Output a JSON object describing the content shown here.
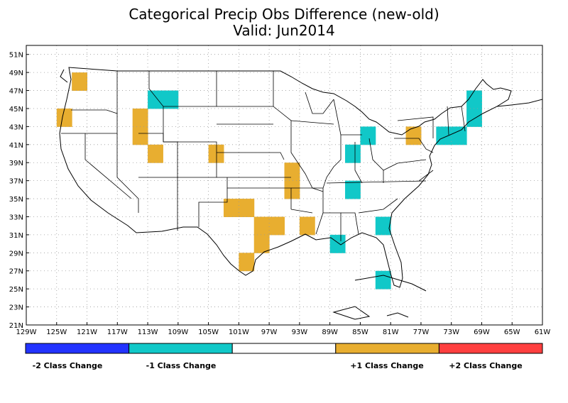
{
  "title": "Categorical Precip Obs Difference (new-old)",
  "subtitle": "Valid: Jun2014",
  "map": {
    "lon_range": [
      -129,
      -61
    ],
    "lat_range": [
      21,
      52
    ],
    "lon_ticks": [
      "129W",
      "125W",
      "121W",
      "117W",
      "113W",
      "109W",
      "105W",
      "101W",
      "97W",
      "93W",
      "89W",
      "85W",
      "81W",
      "77W",
      "73W",
      "69W",
      "65W",
      "61W"
    ],
    "lat_ticks": [
      "51N",
      "49N",
      "47N",
      "45N",
      "43N",
      "41N",
      "39N",
      "37N",
      "35N",
      "33N",
      "31N",
      "29N",
      "27N",
      "25N",
      "23N",
      "21N"
    ],
    "grid": true
  },
  "legend": {
    "items": [
      {
        "label": "-2 Class Change",
        "color": "#2233ff"
      },
      {
        "label": "-1 Class Change",
        "color": "#11c8c8"
      },
      {
        "label": "",
        "color": "#ffffff"
      },
      {
        "label": "+1 Class Change",
        "color": "#e8ae30"
      },
      {
        "label": "+2 Class Change",
        "color": "#ff3f3f"
      }
    ]
  },
  "cells": [
    {
      "lon": -123,
      "lat": 47,
      "cls": 1
    },
    {
      "lon": -125,
      "lat": 43,
      "cls": 1
    },
    {
      "lon": -115,
      "lat": 43,
      "cls": 1
    },
    {
      "lon": -115,
      "lat": 41,
      "cls": 1
    },
    {
      "lon": -113,
      "lat": 39,
      "cls": 1
    },
    {
      "lon": -105,
      "lat": 39,
      "cls": 1
    },
    {
      "lon": -113,
      "lat": 45,
      "cls": -1
    },
    {
      "lon": -111,
      "lat": 45,
      "cls": -1
    },
    {
      "lon": -95,
      "lat": 37,
      "cls": 1
    },
    {
      "lon": -95,
      "lat": 35,
      "cls": 1
    },
    {
      "lon": -101,
      "lat": 33,
      "cls": 1
    },
    {
      "lon": -103,
      "lat": 33,
      "cls": 1
    },
    {
      "lon": -97,
      "lat": 31,
      "cls": 1
    },
    {
      "lon": -99,
      "lat": 31,
      "cls": 1
    },
    {
      "lon": -99,
      "lat": 29,
      "cls": 1
    },
    {
      "lon": -101,
      "lat": 27,
      "cls": 1
    },
    {
      "lon": -93,
      "lat": 31,
      "cls": 1
    },
    {
      "lon": -89,
      "lat": 29,
      "cls": -1
    },
    {
      "lon": -87,
      "lat": 35,
      "cls": -1
    },
    {
      "lon": -87,
      "lat": 39,
      "cls": -1
    },
    {
      "lon": -85,
      "lat": 41,
      "cls": -1
    },
    {
      "lon": -83,
      "lat": 31,
      "cls": -1
    },
    {
      "lon": -83,
      "lat": 25,
      "cls": -1
    },
    {
      "lon": -79,
      "lat": 41,
      "cls": 1
    },
    {
      "lon": -75,
      "lat": 41,
      "cls": -1
    },
    {
      "lon": -73,
      "lat": 41,
      "cls": -1
    },
    {
      "lon": -71,
      "lat": 43,
      "cls": -1
    },
    {
      "lon": -71,
      "lat": 45,
      "cls": -1
    }
  ]
}
